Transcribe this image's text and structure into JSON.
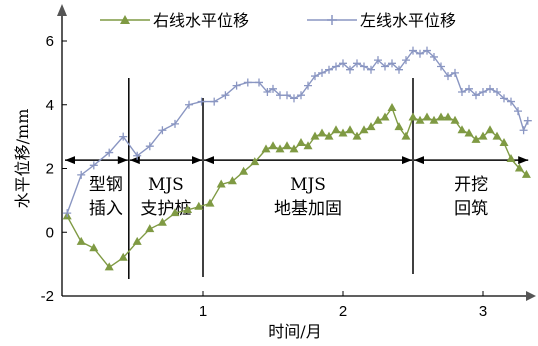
{
  "chart_data": {
    "type": "line",
    "xlabel": "时间/月",
    "ylabel": "水平位移/mm",
    "xlim": [
      0,
      3.3
    ],
    "ylim": [
      -2,
      7
    ],
    "x_ticks": [
      1,
      2,
      3
    ],
    "y_ticks": [
      -2,
      0,
      2,
      4,
      6
    ],
    "legend_position": "top",
    "series": [
      {
        "name": "右线水平位移",
        "color": "#7f9a43",
        "marker": "triangle",
        "x": [
          0.03,
          0.13,
          0.22,
          0.33,
          0.43,
          0.53,
          0.62,
          0.71,
          0.8,
          0.89,
          0.97,
          1.05,
          1.13,
          1.21,
          1.29,
          1.37,
          1.45,
          1.5,
          1.55,
          1.6,
          1.65,
          1.7,
          1.75,
          1.8,
          1.85,
          1.9,
          1.95,
          2.0,
          2.05,
          2.1,
          2.15,
          2.2,
          2.25,
          2.3,
          2.35,
          2.4,
          2.45,
          2.5,
          2.55,
          2.6,
          2.65,
          2.7,
          2.75,
          2.8,
          2.85,
          2.9,
          2.95,
          3.0,
          3.05,
          3.1,
          3.15,
          3.2,
          3.26,
          3.31
        ],
        "y": [
          0.5,
          -0.3,
          -0.5,
          -1.1,
          -0.8,
          -0.3,
          0.1,
          0.3,
          0.6,
          0.7,
          0.8,
          0.9,
          1.5,
          1.6,
          1.9,
          2.2,
          2.6,
          2.7,
          2.6,
          2.7,
          2.6,
          2.8,
          2.7,
          3.0,
          3.1,
          3.0,
          3.2,
          3.1,
          3.2,
          3.0,
          3.2,
          3.3,
          3.5,
          3.6,
          3.9,
          3.3,
          3.0,
          3.6,
          3.5,
          3.6,
          3.5,
          3.6,
          3.6,
          3.5,
          3.2,
          3.1,
          2.9,
          3.0,
          3.2,
          3.0,
          2.8,
          2.3,
          2.0,
          1.8
        ]
      },
      {
        "name": "左线水平位移",
        "color": "#8a96c2",
        "marker": "plus",
        "x": [
          0.03,
          0.13,
          0.22,
          0.33,
          0.43,
          0.53,
          0.62,
          0.71,
          0.8,
          0.9,
          0.99,
          1.08,
          1.16,
          1.24,
          1.32,
          1.4,
          1.46,
          1.5,
          1.55,
          1.6,
          1.65,
          1.7,
          1.75,
          1.8,
          1.85,
          1.9,
          1.95,
          2.0,
          2.05,
          2.1,
          2.15,
          2.2,
          2.25,
          2.3,
          2.35,
          2.4,
          2.45,
          2.5,
          2.55,
          2.6,
          2.65,
          2.7,
          2.75,
          2.8,
          2.85,
          2.9,
          2.95,
          3.0,
          3.05,
          3.1,
          3.15,
          3.2,
          3.25,
          3.29,
          3.32
        ],
        "y": [
          0.6,
          1.8,
          2.1,
          2.5,
          3.0,
          2.4,
          2.7,
          3.2,
          3.4,
          4.0,
          4.1,
          4.1,
          4.3,
          4.6,
          4.7,
          4.7,
          4.4,
          4.5,
          4.3,
          4.3,
          4.2,
          4.3,
          4.6,
          4.9,
          5.0,
          5.1,
          5.2,
          5.3,
          5.1,
          5.3,
          5.2,
          5.1,
          5.4,
          5.2,
          5.3,
          5.1,
          5.4,
          5.7,
          5.6,
          5.7,
          5.5,
          5.2,
          4.9,
          5.0,
          4.4,
          4.5,
          4.3,
          4.4,
          4.5,
          4.4,
          4.2,
          4.1,
          3.8,
          3.2,
          3.5
        ]
      }
    ],
    "phase_boundaries": [
      0.47,
      1.0,
      2.5
    ],
    "phases": [
      {
        "line1": "型钢",
        "line2": "插入"
      },
      {
        "line1": "MJS",
        "line2": "支护桩"
      },
      {
        "line1": "MJS",
        "line2": "地基加固"
      },
      {
        "line1": "开挖",
        "line2": "回筑"
      }
    ],
    "arrow_level": 2.2
  }
}
